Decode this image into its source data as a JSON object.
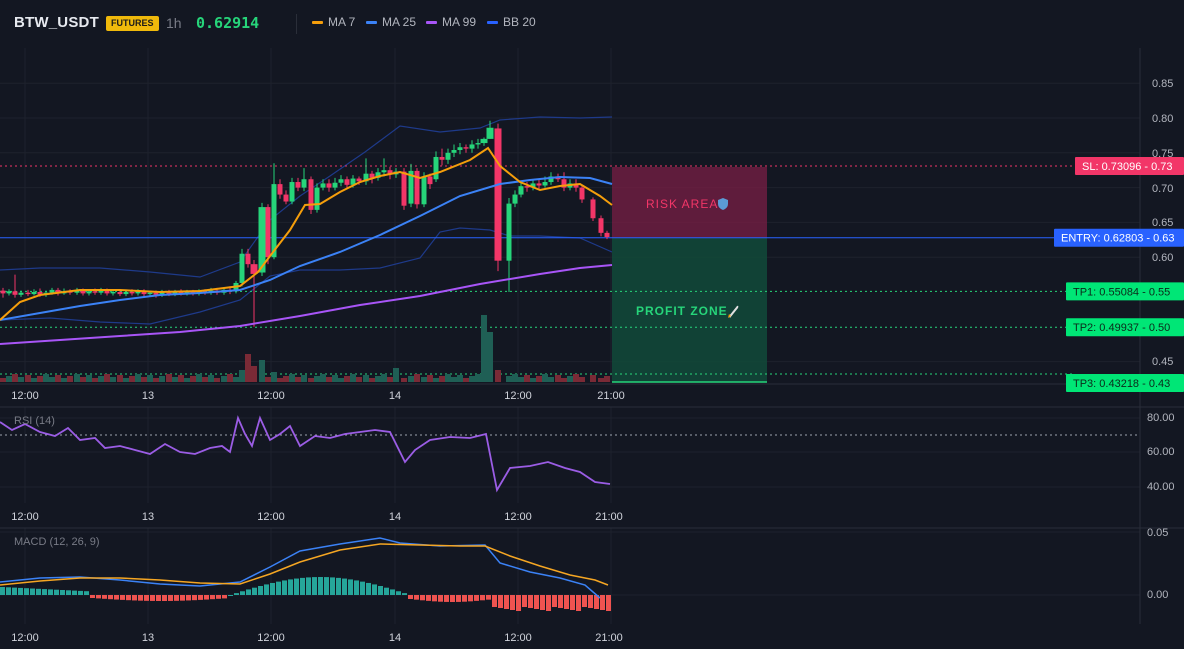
{
  "header": {
    "symbol": "BTW_USDT",
    "badge": "FUTURES",
    "timeframe": "1h",
    "price": "0.62914",
    "legend": [
      {
        "label": "MA 7",
        "color": "#f59e0b"
      },
      {
        "label": "MA 25",
        "color": "#3b82f6"
      },
      {
        "label": "MA 99",
        "color": "#a855f7"
      },
      {
        "label": "BB 20",
        "color": "#2962ff"
      }
    ]
  },
  "colors": {
    "up": "#26d57a",
    "down": "#f23668",
    "entry": "#2962ff",
    "sl": "#f23668",
    "tp": "#26d57a",
    "rsi": "#9b5de5",
    "macd": "#3b82f6",
    "signal": "#f5a623",
    "hist_up": "#26a69a",
    "hist_down": "#ef5350"
  },
  "time_labels": [
    "12:00",
    "13",
    "12:00",
    "14",
    "12:00",
    "21:00"
  ],
  "main_pane": {
    "ylabels": [
      "0.85",
      "0.80",
      "0.75",
      "0.70",
      "0.65",
      "0.60",
      "0.45"
    ],
    "yvalues": [
      0.85,
      0.8,
      0.75,
      0.7,
      0.65,
      0.6,
      0.45
    ],
    "risk_label": "RISK AREA",
    "profit_label": "PROFIT ZONE",
    "levels": [
      {
        "label": "SL: 0.73096 - 0.73",
        "value": 0.73096,
        "kind": "sl"
      },
      {
        "label": "ENTRY: 0.62803 - 0.63",
        "value": 0.62803,
        "kind": "entry"
      },
      {
        "label": "TP1: 0.55084 - 0.55",
        "value": 0.55084,
        "kind": "tp"
      },
      {
        "label": "TP2: 0.49937 - 0.50",
        "value": 0.49937,
        "kind": "tp"
      },
      {
        "label": "TP3: 0.43218 - 0.43",
        "value": 0.43218,
        "kind": "tp"
      }
    ]
  },
  "rsi_pane": {
    "title": "RSI (14)",
    "ylabels": [
      "80.00",
      "60.00",
      "40.00"
    ],
    "yvalues": [
      80,
      60,
      40
    ],
    "overbought": 70
  },
  "macd_pane": {
    "title": "MACD (12, 26, 9)",
    "ylabels": [
      "0.05",
      "0.00"
    ],
    "yvalues": [
      0.05,
      0.0
    ]
  }
}
